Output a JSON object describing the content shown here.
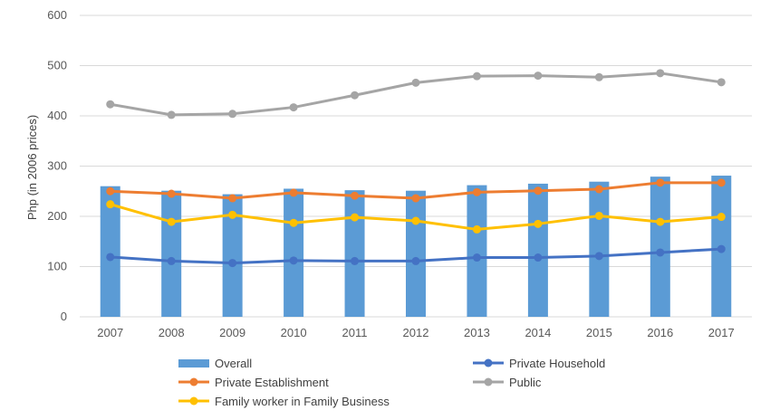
{
  "chart_data": {
    "type": "bar",
    "title": "",
    "xlabel": "",
    "ylabel": "Php (in 2006 prices)",
    "ylim": [
      0,
      600
    ],
    "yticks": [
      0,
      100,
      200,
      300,
      400,
      500,
      600
    ],
    "grid": true,
    "legend_position": "bottom",
    "categories": [
      "2007",
      "2008",
      "2009",
      "2010",
      "2011",
      "2012",
      "2013",
      "2014",
      "2015",
      "2016",
      "2017"
    ],
    "series": [
      {
        "name": "Overall",
        "kind": "bar",
        "color": "#5B9BD5",
        "values": [
          260,
          251,
          244,
          255,
          252,
          251,
          262,
          265,
          269,
          279,
          281
        ]
      },
      {
        "name": "Private Household",
        "kind": "line",
        "color": "#4472C4",
        "values": [
          119,
          111,
          107,
          112,
          111,
          111,
          118,
          118,
          121,
          128,
          135
        ]
      },
      {
        "name": "Private Establishment",
        "kind": "line",
        "color": "#ED7D31",
        "values": [
          250,
          245,
          236,
          247,
          241,
          236,
          248,
          251,
          254,
          267,
          267
        ]
      },
      {
        "name": "Public",
        "kind": "line",
        "color": "#A5A5A5",
        "values": [
          423,
          402,
          404,
          417,
          441,
          466,
          479,
          480,
          477,
          485,
          467
        ]
      },
      {
        "name": "Family worker in Family Business",
        "kind": "line",
        "color": "#FFC000",
        "values": [
          224,
          189,
          203,
          187,
          198,
          191,
          174,
          185,
          201,
          189,
          199
        ]
      }
    ]
  }
}
